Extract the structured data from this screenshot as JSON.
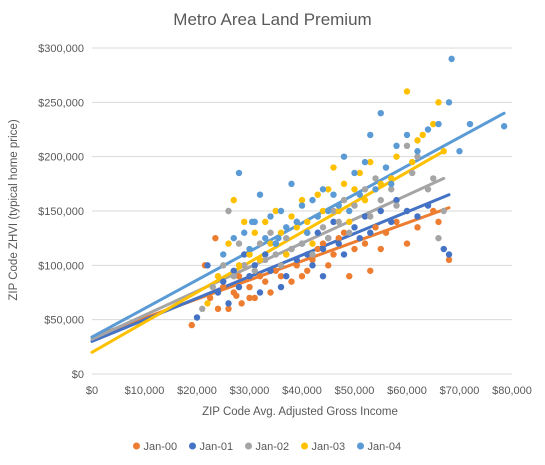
{
  "chart_data": {
    "type": "scatter",
    "title": "Metro Area Land Premium",
    "xlabel": "ZIP Code Avg. Adjusted Gross Income",
    "ylabel": "ZIP Code ZHVI (typical home price)",
    "xlim": [
      0,
      80000
    ],
    "ylim": [
      0,
      300000
    ],
    "x_ticks": [
      "$0",
      "$10,000",
      "$20,000",
      "$30,000",
      "$40,000",
      "$50,000",
      "$60,000",
      "$70,000",
      "$80,000"
    ],
    "y_ticks": [
      "$0",
      "$50,000",
      "$100,000",
      "$150,000",
      "$200,000",
      "$250,000",
      "$300,000"
    ],
    "grid": "horizontal",
    "legend_position": "bottom",
    "series": [
      {
        "name": "Jan-00",
        "color": "#ED7D31",
        "trendline": [
          [
            0,
            34000
          ],
          [
            68000,
            153000
          ]
        ],
        "points": [
          [
            19000,
            45000
          ],
          [
            21500,
            100000
          ],
          [
            23500,
            125000
          ],
          [
            22500,
            70000
          ],
          [
            24000,
            60000
          ],
          [
            25000,
            80000
          ],
          [
            26000,
            60000
          ],
          [
            27000,
            75000
          ],
          [
            28000,
            90000
          ],
          [
            28500,
            65000
          ],
          [
            29000,
            100000
          ],
          [
            30000,
            80000
          ],
          [
            31000,
            70000
          ],
          [
            32000,
            90000
          ],
          [
            33000,
            85000
          ],
          [
            34000,
            75000
          ],
          [
            35000,
            95000
          ],
          [
            36000,
            90000
          ],
          [
            37000,
            110000
          ],
          [
            38000,
            85000
          ],
          [
            39000,
            100000
          ],
          [
            40000,
            90000
          ],
          [
            41000,
            95000
          ],
          [
            42000,
            105000
          ],
          [
            43000,
            115000
          ],
          [
            44000,
            120000
          ],
          [
            45000,
            100000
          ],
          [
            46000,
            110000
          ],
          [
            47000,
            125000
          ],
          [
            48000,
            130000
          ],
          [
            49000,
            90000
          ],
          [
            50000,
            115000
          ],
          [
            52000,
            120000
          ],
          [
            53000,
            95000
          ],
          [
            54000,
            135000
          ],
          [
            55000,
            115000
          ],
          [
            56000,
            130000
          ],
          [
            58000,
            140000
          ],
          [
            60000,
            120000
          ],
          [
            62000,
            135000
          ],
          [
            65000,
            150000
          ],
          [
            68000,
            105000
          ],
          [
            66000,
            140000
          ],
          [
            30000,
            70000
          ],
          [
            27500,
            72000
          ]
        ]
      },
      {
        "name": "Jan-01",
        "color": "#4472C4",
        "trendline": [
          [
            0,
            30000
          ],
          [
            68000,
            165000
          ]
        ],
        "points": [
          [
            20000,
            52000
          ],
          [
            22000,
            100000
          ],
          [
            24000,
            75000
          ],
          [
            25000,
            85000
          ],
          [
            26000,
            65000
          ],
          [
            27000,
            95000
          ],
          [
            28000,
            80000
          ],
          [
            29000,
            110000
          ],
          [
            30000,
            90000
          ],
          [
            31000,
            100000
          ],
          [
            32000,
            75000
          ],
          [
            33000,
            110000
          ],
          [
            34000,
            95000
          ],
          [
            35000,
            120000
          ],
          [
            36000,
            100000
          ],
          [
            37000,
            90000
          ],
          [
            38000,
            115000
          ],
          [
            39000,
            105000
          ],
          [
            40000,
            120000
          ],
          [
            41000,
            110000
          ],
          [
            42000,
            100000
          ],
          [
            43000,
            130000
          ],
          [
            44000,
            115000
          ],
          [
            45000,
            125000
          ],
          [
            46000,
            140000
          ],
          [
            47000,
            120000
          ],
          [
            48000,
            110000
          ],
          [
            50000,
            135000
          ],
          [
            51000,
            125000
          ],
          [
            52000,
            145000
          ],
          [
            53000,
            130000
          ],
          [
            55000,
            150000
          ],
          [
            57000,
            140000
          ],
          [
            58000,
            160000
          ],
          [
            60000,
            150000
          ],
          [
            62000,
            145000
          ],
          [
            64000,
            155000
          ],
          [
            67000,
            115000
          ],
          [
            68000,
            110000
          ],
          [
            36000,
            80000
          ],
          [
            44000,
            90000
          ]
        ]
      },
      {
        "name": "Jan-02",
        "color": "#A5A5A5",
        "trendline": [
          [
            0,
            32000
          ],
          [
            67000,
            180000
          ]
        ],
        "points": [
          [
            21000,
            60000
          ],
          [
            23000,
            80000
          ],
          [
            25000,
            100000
          ],
          [
            26000,
            150000
          ],
          [
            27000,
            90000
          ],
          [
            28000,
            120000
          ],
          [
            29000,
            100000
          ],
          [
            30000,
            110000
          ],
          [
            31000,
            95000
          ],
          [
            32000,
            120000
          ],
          [
            33000,
            105000
          ],
          [
            34000,
            130000
          ],
          [
            35000,
            110000
          ],
          [
            36000,
            100000
          ],
          [
            37000,
            125000
          ],
          [
            38000,
            115000
          ],
          [
            39000,
            140000
          ],
          [
            40000,
            120000
          ],
          [
            41000,
            130000
          ],
          [
            42000,
            110000
          ],
          [
            43000,
            145000
          ],
          [
            44000,
            135000
          ],
          [
            45000,
            125000
          ],
          [
            46000,
            150000
          ],
          [
            47000,
            140000
          ],
          [
            48000,
            160000
          ],
          [
            49000,
            130000
          ],
          [
            50000,
            155000
          ],
          [
            52000,
            170000
          ],
          [
            53000,
            145000
          ],
          [
            54000,
            180000
          ],
          [
            55000,
            160000
          ],
          [
            56000,
            190000
          ],
          [
            57000,
            170000
          ],
          [
            58000,
            155000
          ],
          [
            60000,
            210000
          ],
          [
            61000,
            185000
          ],
          [
            62000,
            200000
          ],
          [
            64000,
            170000
          ],
          [
            65000,
            180000
          ],
          [
            66000,
            125000
          ],
          [
            67000,
            150000
          ]
        ]
      },
      {
        "name": "Jan-03",
        "color": "#FFC000",
        "trendline": [
          [
            0,
            20000
          ],
          [
            67000,
            205000
          ]
        ],
        "points": [
          [
            22000,
            65000
          ],
          [
            24000,
            90000
          ],
          [
            26000,
            120000
          ],
          [
            27000,
            160000
          ],
          [
            28000,
            100000
          ],
          [
            29000,
            140000
          ],
          [
            30000,
            110000
          ],
          [
            31000,
            130000
          ],
          [
            32000,
            105000
          ],
          [
            33000,
            140000
          ],
          [
            34000,
            120000
          ],
          [
            35000,
            150000
          ],
          [
            36000,
            130000
          ],
          [
            37000,
            110000
          ],
          [
            38000,
            145000
          ],
          [
            39000,
            135000
          ],
          [
            40000,
            160000
          ],
          [
            41000,
            140000
          ],
          [
            42000,
            120000
          ],
          [
            43000,
            165000
          ],
          [
            44000,
            150000
          ],
          [
            45000,
            170000
          ],
          [
            46000,
            190000
          ],
          [
            47000,
            150000
          ],
          [
            48000,
            175000
          ],
          [
            49000,
            140000
          ],
          [
            50000,
            170000
          ],
          [
            51000,
            185000
          ],
          [
            52000,
            160000
          ],
          [
            53000,
            195000
          ],
          [
            55000,
            175000
          ],
          [
            57000,
            180000
          ],
          [
            58000,
            200000
          ],
          [
            60000,
            260000
          ],
          [
            61000,
            195000
          ],
          [
            62000,
            215000
          ],
          [
            63000,
            220000
          ],
          [
            65000,
            230000
          ],
          [
            66000,
            250000
          ],
          [
            67000,
            205000
          ]
        ]
      },
      {
        "name": "Jan-04",
        "color": "#5B9BD5",
        "trendline": [
          [
            0,
            34000
          ],
          [
            78500,
            240000
          ]
        ],
        "points": [
          [
            25000,
            110000
          ],
          [
            27000,
            125000
          ],
          [
            28000,
            185000
          ],
          [
            29000,
            130000
          ],
          [
            30000,
            115000
          ],
          [
            31000,
            140000
          ],
          [
            32000,
            165000
          ],
          [
            33000,
            125000
          ],
          [
            34000,
            145000
          ],
          [
            35000,
            120000
          ],
          [
            36000,
            150000
          ],
          [
            37000,
            135000
          ],
          [
            38000,
            175000
          ],
          [
            39000,
            140000
          ],
          [
            40000,
            155000
          ],
          [
            41000,
            130000
          ],
          [
            42000,
            160000
          ],
          [
            43000,
            145000
          ],
          [
            44000,
            170000
          ],
          [
            45000,
            150000
          ],
          [
            46000,
            165000
          ],
          [
            47000,
            155000
          ],
          [
            48000,
            200000
          ],
          [
            49000,
            150000
          ],
          [
            50000,
            185000
          ],
          [
            51000,
            165000
          ],
          [
            52000,
            195000
          ],
          [
            53000,
            220000
          ],
          [
            54000,
            170000
          ],
          [
            55000,
            240000
          ],
          [
            56000,
            190000
          ],
          [
            57000,
            175000
          ],
          [
            58000,
            210000
          ],
          [
            60000,
            220000
          ],
          [
            62000,
            205000
          ],
          [
            64000,
            225000
          ],
          [
            66000,
            230000
          ],
          [
            68000,
            250000
          ],
          [
            68500,
            290000
          ],
          [
            70000,
            205000
          ],
          [
            72000,
            230000
          ],
          [
            78500,
            228000
          ],
          [
            30500,
            140000
          ],
          [
            35500,
            125000
          ]
        ]
      }
    ]
  }
}
